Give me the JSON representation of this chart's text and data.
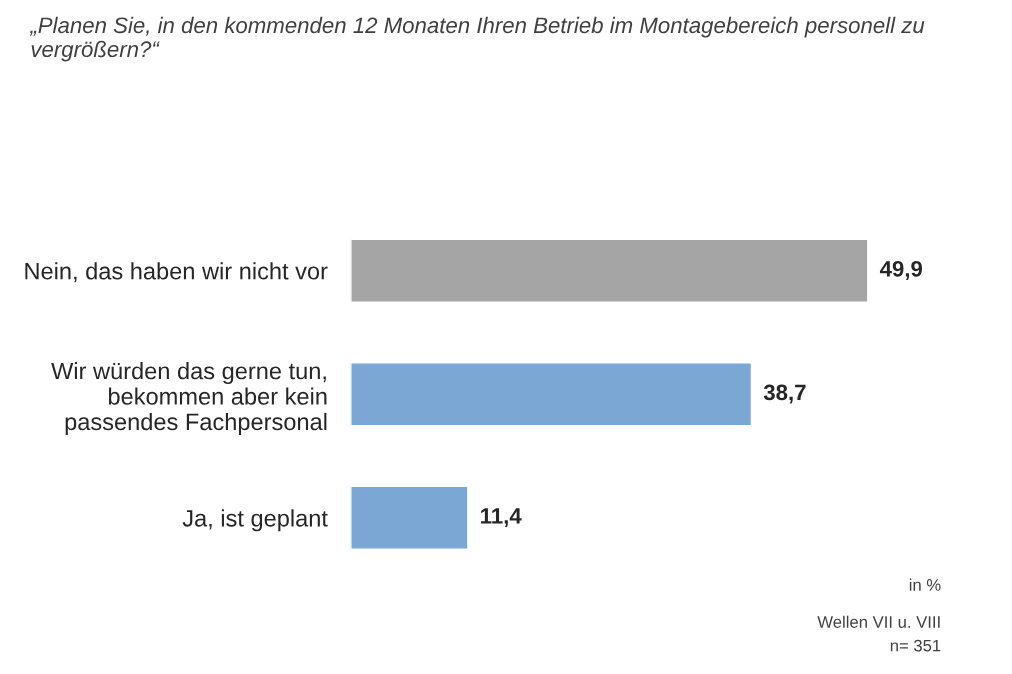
{
  "chart_data": {
    "type": "bar",
    "orientation": "horizontal",
    "title": "„Planen Sie, in den kommenden 12 Monaten Ihren Betrieb im Montagebereich personell zu vergrößern?“",
    "categories": [
      "Nein, das haben wir nicht vor",
      "Wir würden das gerne tun,\nbekommen aber kein\npassendes Fachpersonal",
      "Ja, ist geplant"
    ],
    "values": [
      49.9,
      38.7,
      11.4
    ],
    "colors": [
      "#a5a5a5",
      "#7ba7d4",
      "#7ba7d4"
    ],
    "value_labels": [
      "49,9",
      "38,7",
      "11,4"
    ],
    "annotations": [
      "in %",
      "Wellen VII u. VIII",
      "n= 351"
    ],
    "grid": false,
    "legend": false
  }
}
